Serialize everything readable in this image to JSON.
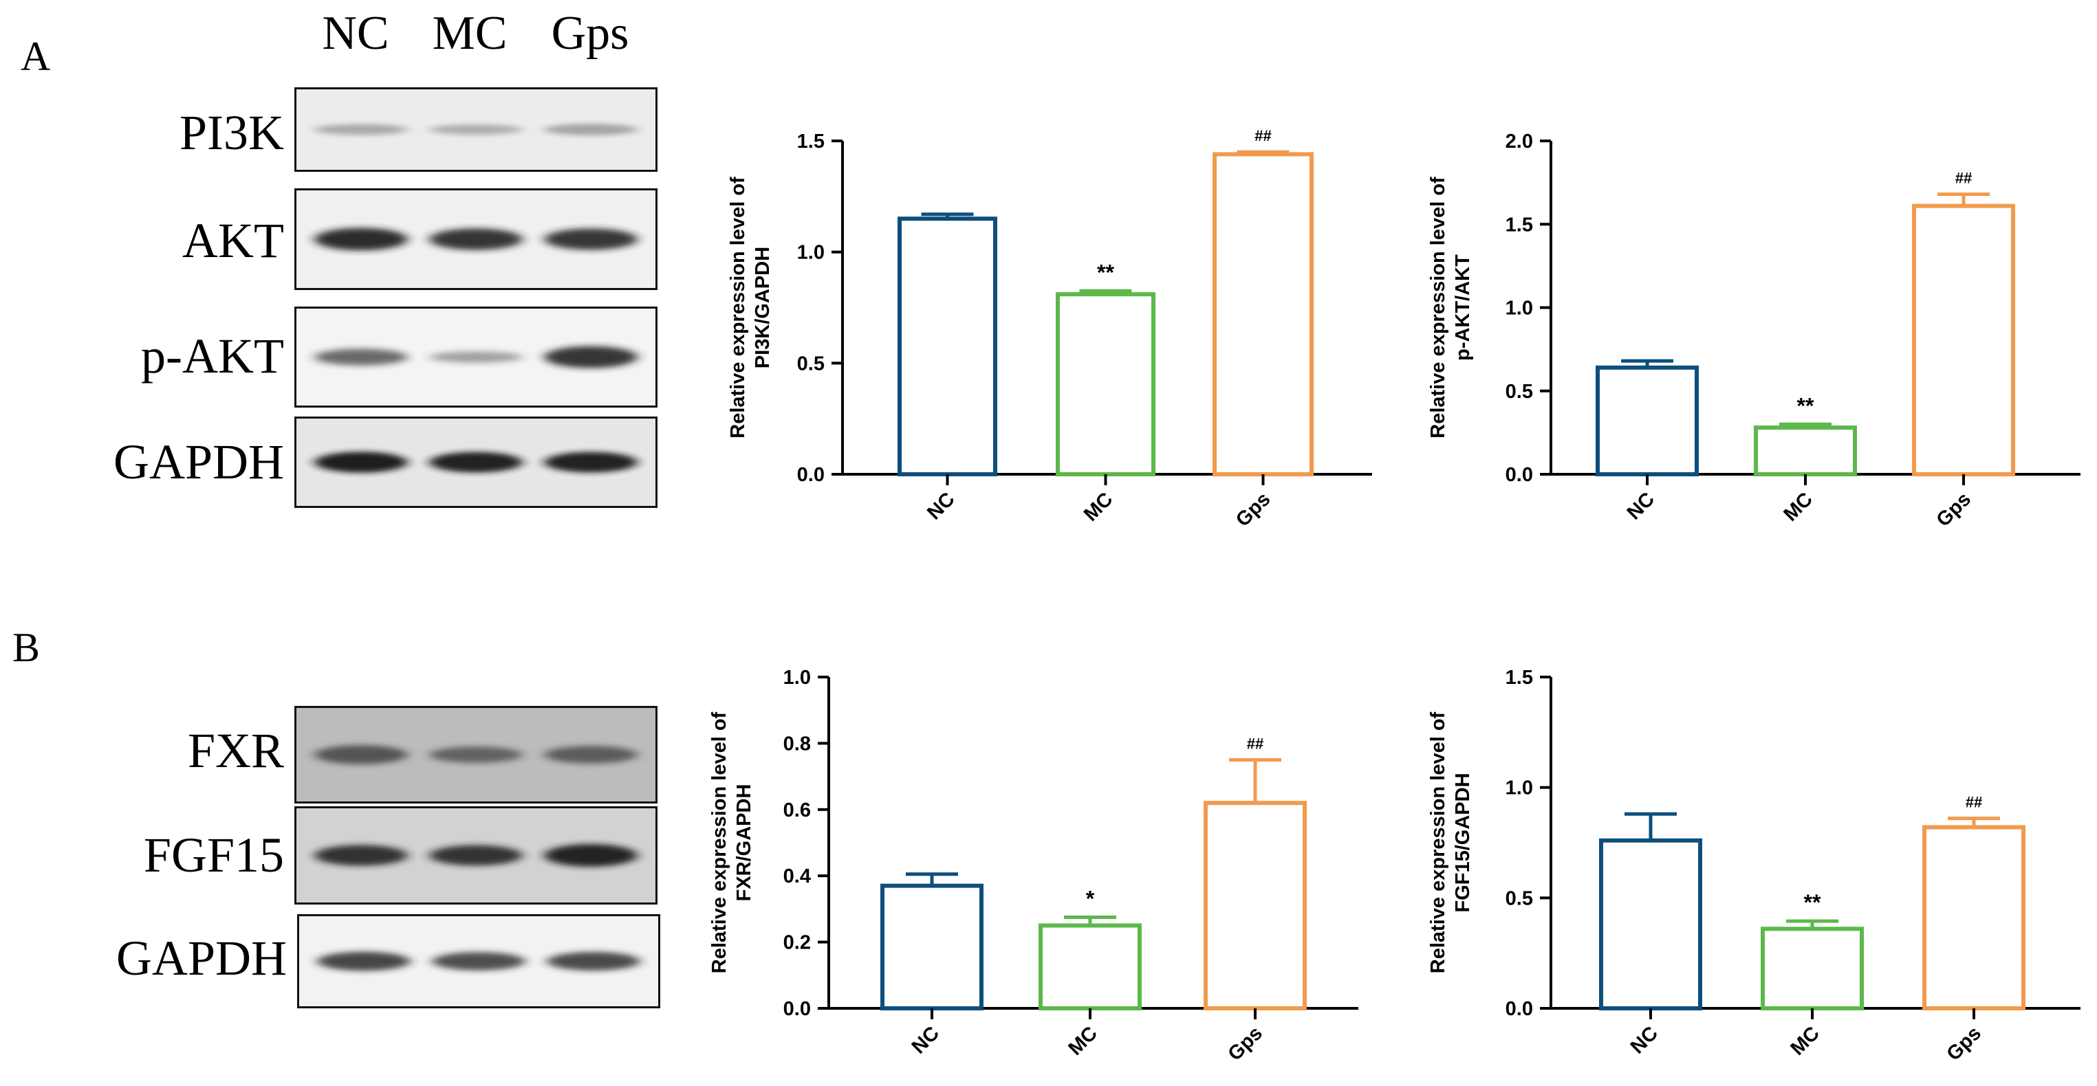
{
  "panels": [
    {
      "letter": "A",
      "lane_labels": [
        "NC",
        "MC",
        "Gps"
      ],
      "blots": [
        {
          "name": "PI3K",
          "background": "#ececec",
          "band_color": "#6a6a6a",
          "intensity": [
            0.42,
            0.38,
            0.48
          ]
        },
        {
          "name": "AKT",
          "background": "#f0f0f0",
          "band_color": "#1a1a1a",
          "intensity": [
            0.95,
            0.9,
            0.88
          ]
        },
        {
          "name": "p-AKT",
          "background": "#f4f4f4",
          "band_color": "#202020",
          "intensity": [
            0.62,
            0.3,
            0.92
          ]
        },
        {
          "name": "GAPDH",
          "background": "#e6e6e6",
          "band_color": "#141414",
          "intensity": [
            1.0,
            0.98,
            0.98
          ]
        }
      ]
    },
    {
      "letter": "B",
      "lane_labels": [],
      "blots": [
        {
          "name": "FXR",
          "background": "#bcbcbc",
          "band_color": "#3a3a3a",
          "intensity": [
            0.8,
            0.65,
            0.72
          ]
        },
        {
          "name": "FGF15",
          "background": "#d2d2d2",
          "band_color": "#1c1c1c",
          "intensity": [
            0.9,
            0.88,
            1.0
          ]
        },
        {
          "name": "GAPDH",
          "background": "#f2f2f2",
          "band_color": "#262626",
          "intensity": [
            0.85,
            0.8,
            0.82
          ]
        }
      ]
    }
  ],
  "chart_data": [
    {
      "type": "bar",
      "panel": "A",
      "categories": [
        "NC",
        "MC",
        "Gps"
      ],
      "values": [
        1.15,
        0.81,
        1.44
      ],
      "errors": [
        0.02,
        0.015,
        0.01
      ],
      "significance": [
        "",
        "**",
        "##"
      ],
      "colors": [
        "#0d4f7c",
        "#5cb84a",
        "#f29a4c"
      ],
      "ylabel": [
        "Relative expression level of",
        "PI3K/GAPDH"
      ],
      "ylim": [
        0,
        1.5
      ],
      "yticks": [
        "0.0",
        "0.5",
        "1.0",
        "1.5"
      ]
    },
    {
      "type": "bar",
      "panel": "A",
      "categories": [
        "NC",
        "MC",
        "Gps"
      ],
      "values": [
        0.64,
        0.28,
        1.61
      ],
      "errors": [
        0.04,
        0.02,
        0.07
      ],
      "significance": [
        "",
        "**",
        "##"
      ],
      "colors": [
        "#0d4f7c",
        "#5cb84a",
        "#f29a4c"
      ],
      "ylabel": [
        "Relative expression level of",
        "p-AKT/AKT"
      ],
      "ylim": [
        0,
        2.0
      ],
      "yticks": [
        "0.0",
        "0.5",
        "1.0",
        "1.5",
        "2.0"
      ]
    },
    {
      "type": "bar",
      "panel": "B",
      "categories": [
        "NC",
        "MC",
        "Gps"
      ],
      "values": [
        0.37,
        0.25,
        0.62
      ],
      "errors": [
        0.035,
        0.025,
        0.13
      ],
      "significance": [
        "",
        "*",
        "##"
      ],
      "colors": [
        "#0d4f7c",
        "#5cb84a",
        "#f29a4c"
      ],
      "ylabel": [
        "Relative expression level of",
        "FXR/GAPDH"
      ],
      "ylim": [
        0,
        1.0
      ],
      "yticks": [
        "0.0",
        "0.2",
        "0.4",
        "0.6",
        "0.8",
        "1.0"
      ]
    },
    {
      "type": "bar",
      "panel": "B",
      "categories": [
        "NC",
        "MC",
        "Gps"
      ],
      "values": [
        0.76,
        0.36,
        0.82
      ],
      "errors": [
        0.12,
        0.035,
        0.04
      ],
      "significance": [
        "",
        "**",
        "##"
      ],
      "colors": [
        "#0d4f7c",
        "#5cb84a",
        "#f29a4c"
      ],
      "ylabel": [
        "Relative expression level of",
        "FGF15/GAPDH"
      ],
      "ylim": [
        0,
        1.5
      ],
      "yticks": [
        "0.0",
        "0.5",
        "1.0",
        "1.5"
      ]
    }
  ]
}
